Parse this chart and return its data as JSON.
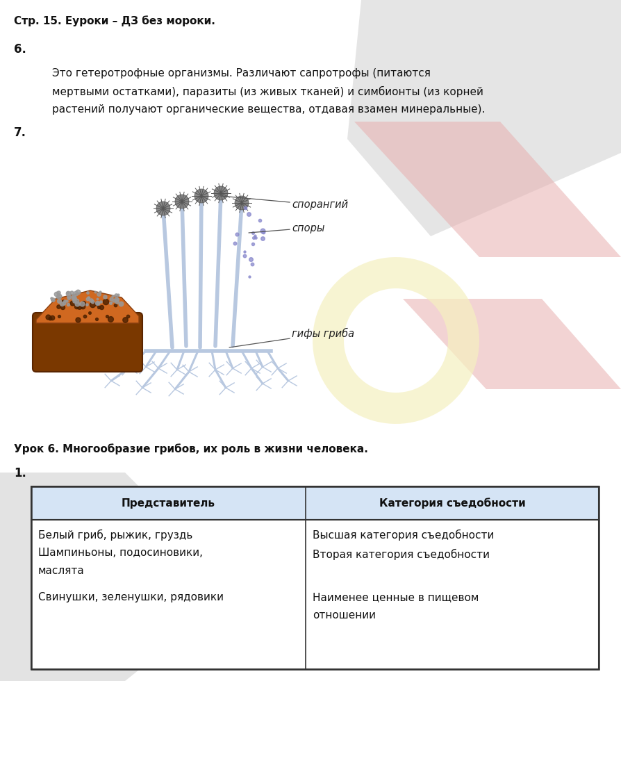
{
  "bg_color": "#ffffff",
  "page_width": 8.94,
  "page_height": 10.98,
  "dpi": 100,
  "header": "Стр. 15. Еуроки – ДЗ без мороки.",
  "section6_label": "6.",
  "section6_text_lines": [
    "Это гетеротрофные организмы. Различают сапротрофы (питаются",
    "мертвыми остатками), паразиты (из живых тканей) и симбионты (из корней",
    "растений получают органические вещества, отдавая взамен минеральные)."
  ],
  "section7_label": "7.",
  "label_sporangiy": "спорангий",
  "label_spory": "споры",
  "label_gifu": "гифы гриба",
  "lesson_header": "Урок 6. Многообразие грибов, их роль в жизни человека.",
  "task1_label": "1.",
  "table_col1_header": "Представитель",
  "table_col2_header": "Категория съедобности",
  "col1_lines": [
    "Белый гриб, рыжик, груздь",
    "Шампиньоны, подосиновики,",
    "маслята",
    "Свинушки, зеленушки, рядовики"
  ],
  "col2_lines": [
    "Высшая категория съедобности",
    "Вторая категория съедобности",
    "",
    "Наименее ценные в пищевом"
  ],
  "col2_line5": "отношении",
  "header_fontsize": 11,
  "body_fontsize": 11,
  "label_fontsize": 12,
  "lesson_header_fontsize": 11,
  "table_header_fontsize": 11,
  "table_body_fontsize": 11
}
